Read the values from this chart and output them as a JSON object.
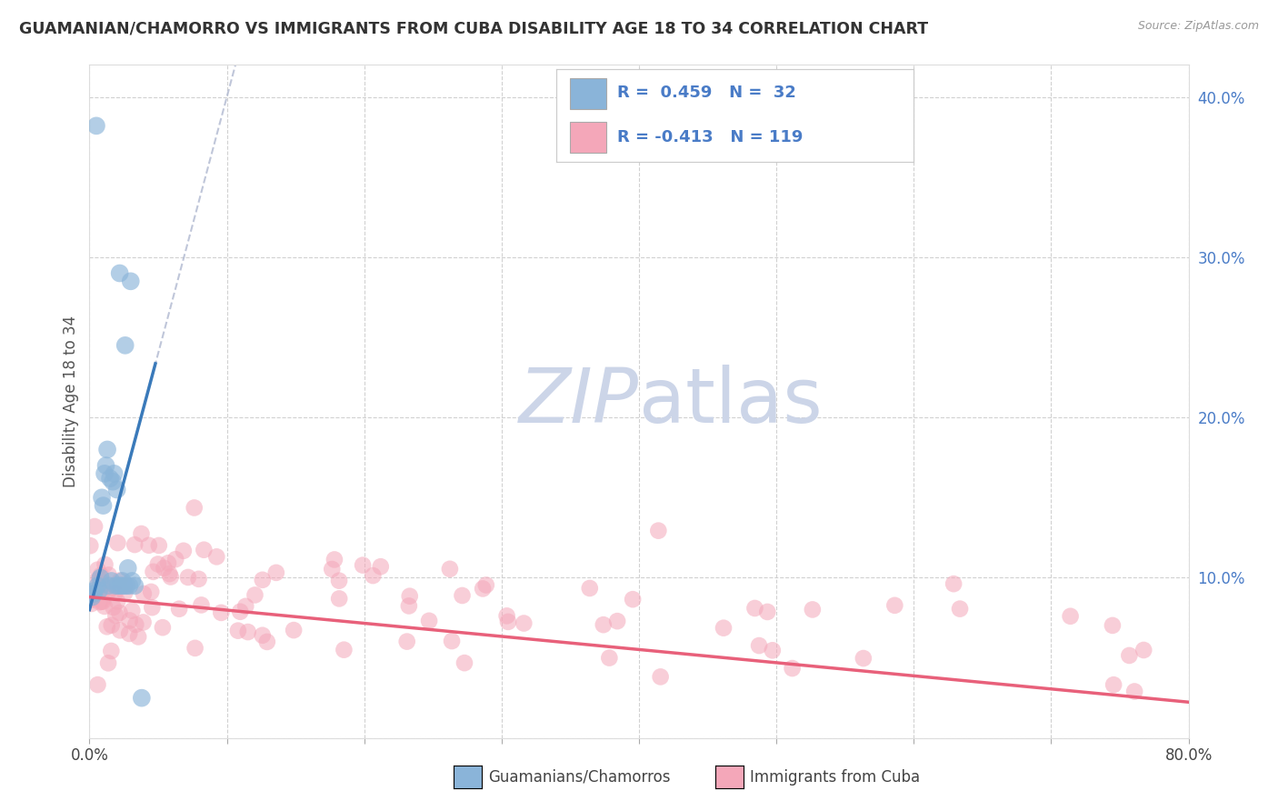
{
  "title": "GUAMANIAN/CHAMORRO VS IMMIGRANTS FROM CUBA DISABILITY AGE 18 TO 34 CORRELATION CHART",
  "source": "Source: ZipAtlas.com",
  "ylabel": "Disability Age 18 to 34",
  "xlim": [
    0.0,
    0.8
  ],
  "ylim": [
    0.0,
    0.42
  ],
  "color_blue": "#8ab4d9",
  "color_pink": "#f4a7b9",
  "color_blue_line": "#3a7aba",
  "color_pink_line": "#e8607a",
  "color_dashed": "#b0b8d0",
  "watermark_color": "#ccd5e8",
  "ytick_color": "#4a7cc7",
  "grid_color": "#cccccc",
  "title_color": "#333333",
  "source_color": "#999999"
}
